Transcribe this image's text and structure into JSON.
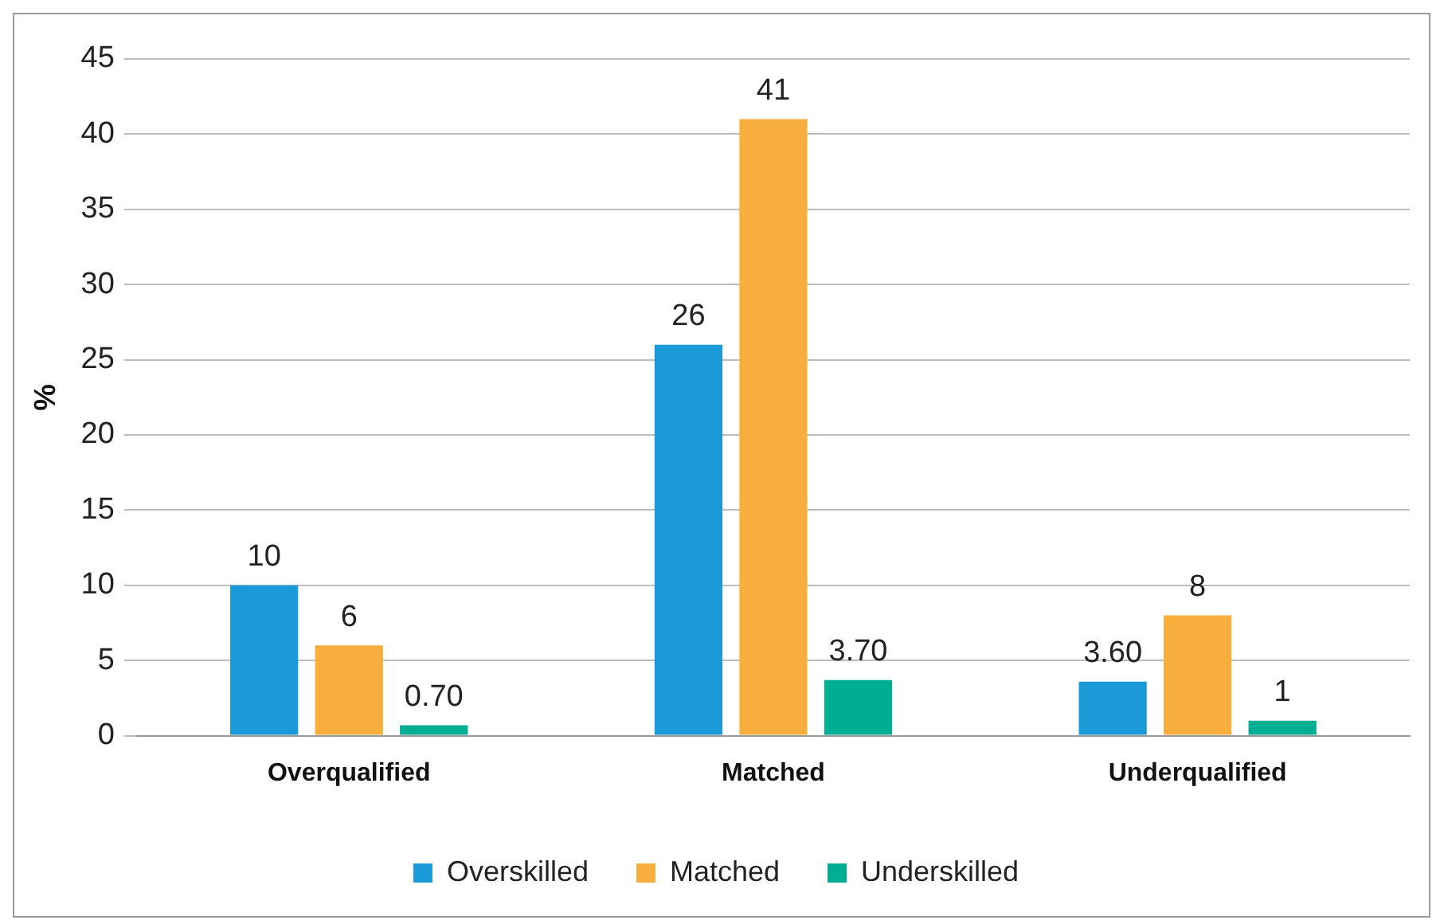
{
  "chart_data": {
    "type": "bar",
    "ylabel": "%",
    "categories": [
      "Overqualified",
      "Matched",
      "Underqualified"
    ],
    "series": [
      {
        "name": "Overskilled",
        "color": "#1a9bd7",
        "values": [
          10,
          26,
          3.6
        ],
        "value_labels": [
          "10",
          "26",
          "3.60"
        ]
      },
      {
        "name": "Matched",
        "color": "#f8ae3c",
        "values": [
          6,
          41,
          8
        ],
        "value_labels": [
          "6",
          "41",
          "8"
        ]
      },
      {
        "name": "Underskilled",
        "color": "#00ae94",
        "values": [
          0.7,
          3.7,
          1
        ],
        "value_labels": [
          "0.70",
          "3.70",
          "1"
        ]
      }
    ],
    "ylim": [
      0,
      45
    ],
    "yticks": [
      0,
      5,
      10,
      15,
      20,
      25,
      30,
      35,
      40,
      45
    ],
    "grid": "y",
    "legend": "bottom"
  }
}
